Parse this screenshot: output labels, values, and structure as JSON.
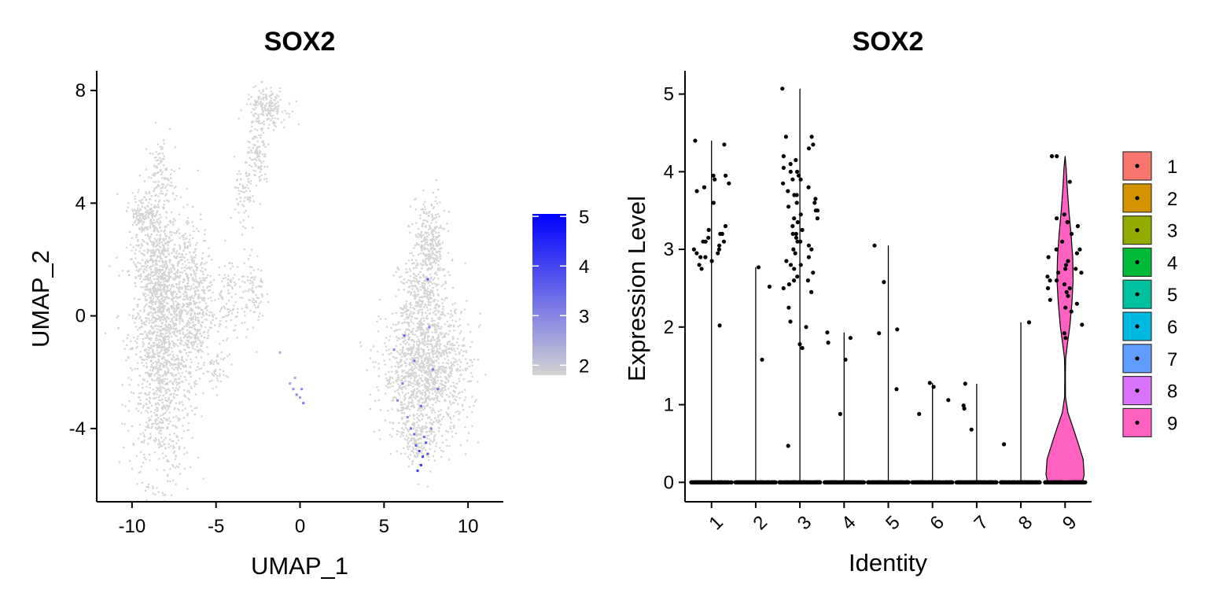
{
  "chart_data": [
    {
      "type": "scatter",
      "title": "SOX2",
      "xlabel": "UMAP_1",
      "ylabel": "UMAP_2",
      "xlim": [
        -12.1,
        12.1
      ],
      "ylim": [
        -6.6,
        8.7
      ],
      "xticks": [
        -10,
        -5,
        0,
        5,
        10
      ],
      "yticks": [
        -4,
        0,
        4,
        8
      ],
      "xtick_labels": [
        "-10",
        "-5",
        "0",
        "5",
        "10"
      ],
      "ytick_labels": [
        "-4",
        "0",
        "4",
        "8"
      ],
      "grid": false,
      "colorbar": {
        "range": [
          1.8,
          5.05
        ],
        "ticks": [
          2,
          3,
          4,
          5
        ],
        "tick_labels": [
          "2",
          "3",
          "4",
          "5"
        ],
        "low_color": "#d3d3d3",
        "high_color": "#0000ff",
        "placement": "right"
      },
      "point_color_default": "#d3d3d3",
      "clusters": [
        {
          "cx": -8.2,
          "cy": -1.0,
          "sx": 0.9,
          "sy": 2.4,
          "n": 1500
        },
        {
          "cx": -8.5,
          "cy": 1.8,
          "sx": 0.7,
          "sy": 1.2,
          "n": 350
        },
        {
          "cx": -9.4,
          "cy": 3.6,
          "sx": 0.4,
          "sy": 0.35,
          "n": 120
        },
        {
          "cx": -8.3,
          "cy": 5.0,
          "sx": 0.35,
          "sy": 0.6,
          "n": 90
        },
        {
          "cx": -6.3,
          "cy": 0.5,
          "sx": 0.6,
          "sy": 1.3,
          "n": 450
        },
        {
          "cx": -4.3,
          "cy": 0.7,
          "sx": 0.35,
          "sy": 0.8,
          "n": 90
        },
        {
          "cx": -2.8,
          "cy": 0.9,
          "sx": 0.35,
          "sy": 0.7,
          "n": 90
        },
        {
          "cx": -3.4,
          "cy": 4.1,
          "sx": 0.25,
          "sy": 0.7,
          "n": 60
        },
        {
          "cx": -2.5,
          "cy": 5.6,
          "sx": 0.35,
          "sy": 0.6,
          "n": 120
        },
        {
          "cx": -2.0,
          "cy": 7.4,
          "sx": 0.6,
          "sy": 0.35,
          "n": 180
        },
        {
          "cx": -4.9,
          "cy": -2.0,
          "sx": 0.3,
          "sy": 0.3,
          "n": 40
        },
        {
          "cx": 7.7,
          "cy": 2.6,
          "sx": 0.5,
          "sy": 0.8,
          "n": 280
        },
        {
          "cx": 7.3,
          "cy": 0.6,
          "sx": 0.7,
          "sy": 0.8,
          "n": 300
        },
        {
          "cx": 7.5,
          "cy": -2.0,
          "sx": 1.3,
          "sy": 1.2,
          "n": 1300
        },
        {
          "cx": 7.0,
          "cy": -4.4,
          "sx": 0.5,
          "sy": 0.4,
          "n": 120
        }
      ],
      "expressing_cells": [
        {
          "x": -0.6,
          "y": -2.4,
          "v": 2.6
        },
        {
          "x": -0.4,
          "y": -2.6,
          "v": 2.8
        },
        {
          "x": -0.2,
          "y": -2.8,
          "v": 3.0
        },
        {
          "x": 0.0,
          "y": -2.9,
          "v": 2.7
        },
        {
          "x": 0.2,
          "y": -3.1,
          "v": 3.2
        },
        {
          "x": -0.3,
          "y": -2.2,
          "v": 2.5
        },
        {
          "x": 0.1,
          "y": -2.6,
          "v": 2.9
        },
        {
          "x": -1.2,
          "y": -1.3,
          "v": 2.4
        },
        {
          "x": 6.9,
          "y": -4.6,
          "v": 3.6
        },
        {
          "x": 7.1,
          "y": -4.8,
          "v": 3.9
        },
        {
          "x": 7.3,
          "y": -5.0,
          "v": 4.1
        },
        {
          "x": 7.5,
          "y": -4.5,
          "v": 3.7
        },
        {
          "x": 7.2,
          "y": -5.3,
          "v": 4.3
        },
        {
          "x": 6.8,
          "y": -4.2,
          "v": 3.5
        },
        {
          "x": 7.0,
          "y": -5.5,
          "v": 4.2
        },
        {
          "x": 7.6,
          "y": -4.9,
          "v": 3.8
        },
        {
          "x": 6.6,
          "y": -4.0,
          "v": 3.3
        },
        {
          "x": 7.4,
          "y": -4.3,
          "v": 3.4
        },
        {
          "x": 6.4,
          "y": -3.6,
          "v": 3.0
        },
        {
          "x": 7.8,
          "y": -4.0,
          "v": 3.1
        },
        {
          "x": 6.1,
          "y": -2.4,
          "v": 3.2
        },
        {
          "x": 6.8,
          "y": -1.6,
          "v": 3.4
        },
        {
          "x": 5.6,
          "y": -1.2,
          "v": 3.0
        },
        {
          "x": 7.7,
          "y": -0.4,
          "v": 3.1
        },
        {
          "x": 7.2,
          "y": -3.2,
          "v": 3.6
        },
        {
          "x": 8.2,
          "y": -2.6,
          "v": 3.3
        },
        {
          "x": 6.2,
          "y": -0.7,
          "v": 3.5
        },
        {
          "x": 5.8,
          "y": -3.0,
          "v": 3.1
        },
        {
          "x": 7.6,
          "y": 1.3,
          "v": 3.8
        },
        {
          "x": 7.9,
          "y": -1.9,
          "v": 3.2
        }
      ]
    },
    {
      "type": "violin",
      "title": "SOX2",
      "xlabel": "Identity",
      "ylabel": "Expression Level",
      "ylim": [
        -0.25,
        5.3
      ],
      "yticks": [
        0,
        1,
        2,
        3,
        4,
        5
      ],
      "ytick_labels": [
        "0",
        "1",
        "2",
        "3",
        "4",
        "5"
      ],
      "categories": [
        "1",
        "2",
        "3",
        "4",
        "5",
        "6",
        "7",
        "8",
        "9"
      ],
      "max_values": [
        4.4,
        2.77,
        5.07,
        1.93,
        3.05,
        1.28,
        1.27,
        2.06,
        4.2
      ],
      "colors": [
        "#F8766D",
        "#D39200",
        "#93AA00",
        "#00BA38",
        "#00C19F",
        "#00B9E3",
        "#619CFF",
        "#DB72FB",
        "#FF61C3"
      ],
      "points": [
        [
          4.35,
          4.4,
          3.95,
          3.9,
          3.85,
          3.8,
          3.25,
          3.2,
          3.15,
          3.1,
          3.05,
          3.0,
          2.95,
          2.9,
          2.85,
          2.8,
          3.3,
          3.1,
          3.0,
          2.95,
          3.95,
          3.75,
          3.6,
          3.2,
          2.02,
          3.1,
          2.9,
          2.75
        ],
        [
          2.77,
          2.52,
          1.58
        ],
        [
          5.07,
          4.45,
          4.45,
          4.35,
          4.3,
          4.2,
          4.15,
          4.1,
          4.05,
          4.0,
          3.95,
          3.9,
          3.85,
          3.8,
          3.75,
          3.7,
          3.65,
          3.6,
          3.55,
          3.5,
          3.45,
          3.4,
          3.35,
          3.3,
          3.25,
          3.2,
          3.15,
          3.1,
          3.05,
          3.0,
          2.95,
          2.9,
          2.85,
          2.8,
          2.75,
          2.7,
          2.65,
          2.6,
          2.55,
          2.5,
          2.45,
          2.25,
          2.07,
          2.0,
          1.78,
          1.73,
          0.47,
          3.7,
          3.4,
          3.1,
          2.8,
          4.0,
          3.6,
          3.2,
          2.6,
          3.9,
          3.5,
          3.0
        ],
        [
          1.93,
          1.86,
          1.8,
          1.58,
          0.88
        ],
        [
          3.05,
          2.58,
          1.97,
          1.92,
          1.2
        ],
        [
          1.28,
          1.23,
          1.06,
          0.88
        ],
        [
          1.27,
          0.99,
          0.95,
          0.68
        ],
        [
          2.06,
          0.49
        ],
        [
          4.2,
          4.2,
          3.87,
          3.45,
          3.4,
          3.35,
          3.2,
          3.1,
          3.0,
          2.95,
          2.9,
          2.85,
          2.8,
          2.75,
          2.7,
          2.65,
          2.6,
          2.55,
          2.5,
          2.45,
          2.4,
          2.35,
          2.3,
          2.25,
          2.2,
          2.03,
          1.92,
          1.86,
          2.75,
          2.6,
          3.3,
          2.5,
          3.0,
          2.7
        ]
      ],
      "zero_count": 160,
      "violin9_profile": [
        [
          0,
          0.82
        ],
        [
          0.1,
          0.9
        ],
        [
          0.3,
          0.85
        ],
        [
          0.5,
          0.62
        ],
        [
          0.7,
          0.38
        ],
        [
          0.9,
          0.13
        ],
        [
          1.1,
          0.02
        ],
        [
          1.4,
          0.015
        ],
        [
          1.6,
          0.03
        ],
        [
          1.8,
          0.12
        ],
        [
          2.0,
          0.22
        ],
        [
          2.3,
          0.32
        ],
        [
          2.6,
          0.38
        ],
        [
          2.9,
          0.36
        ],
        [
          3.2,
          0.28
        ],
        [
          3.5,
          0.18
        ],
        [
          3.8,
          0.1
        ],
        [
          4.05,
          0.05
        ],
        [
          4.2,
          0.0
        ]
      ],
      "legend_labels": [
        "1",
        "2",
        "3",
        "4",
        "5",
        "6",
        "7",
        "8",
        "9"
      ],
      "legend_placement": "right"
    }
  ]
}
